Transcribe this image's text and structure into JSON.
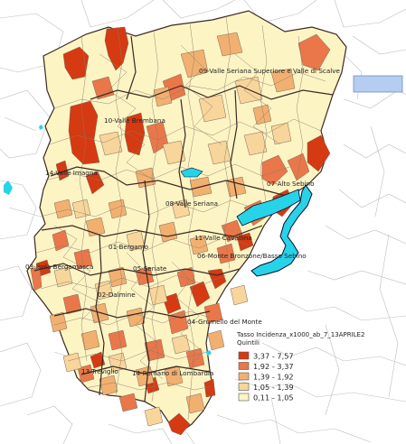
{
  "map": {
    "districts": [
      {
        "id": "01",
        "label": "01-Bergamo"
      },
      {
        "id": "02",
        "label": "02-Dalmine"
      },
      {
        "id": "03",
        "label": "03-Isola Bergamasca"
      },
      {
        "id": "04",
        "label": "04-Grumello del Monte"
      },
      {
        "id": "05",
        "label": "05-Seriate"
      },
      {
        "id": "06",
        "label": "06-Monte Bronzone/Basso Sebino"
      },
      {
        "id": "07",
        "label": "07-Alto Sebino"
      },
      {
        "id": "08",
        "label": "08-Valle Seriana"
      },
      {
        "id": "09",
        "label": "09-Valle Seriana Superiore e Valle di Scalve"
      },
      {
        "id": "10",
        "label": "10-Valle Brembana"
      },
      {
        "id": "11",
        "label": "11-Valle Cavallina"
      },
      {
        "id": "13",
        "label": "13-Treviglio"
      },
      {
        "id": "14",
        "label": "14-Romano di Lombardia"
      },
      {
        "id": "14b",
        "label": "14-Valle Imagna"
      }
    ],
    "colors": {
      "outside_lines": "#bbbbbb",
      "municipal_border": "#7a6a5a",
      "district_border": "#3b2a22",
      "water": "#27d3e8",
      "water_border": "#0a0a2a",
      "selection_box": "#b5cdf0"
    }
  },
  "legend": {
    "title_line1": "Tasso Incidenza_x1000_ab_7_13APRILE2",
    "title_line2": "Quintili",
    "classes": [
      {
        "label": "3,37 - 7,57",
        "color": "#d53a12"
      },
      {
        "label": "1,92 - 3,37",
        "color": "#e9774a"
      },
      {
        "label": "1,39 - 1,92",
        "color": "#f2b070"
      },
      {
        "label": "1,05 - 1,39",
        "color": "#f8d59a"
      },
      {
        "label": "0,11 - 1,05",
        "color": "#fdf4c4"
      }
    ]
  }
}
